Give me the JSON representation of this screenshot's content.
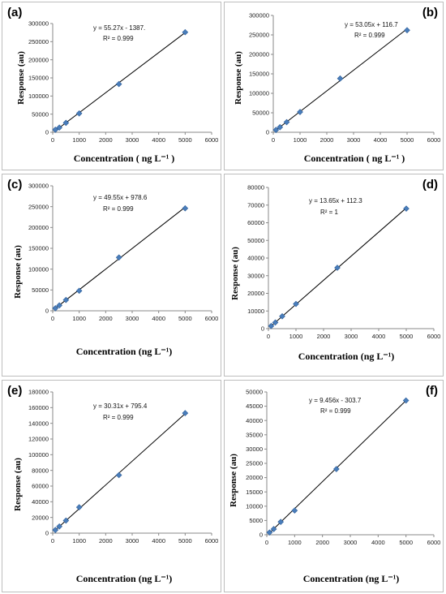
{
  "chart_data": [
    {
      "type": "scatter",
      "panel_label": "(a)",
      "equation": "y = 55.27x - 1387.",
      "r2_label": "R² = 0.999",
      "xlabel": "Concentration ( ng L⁻¹ )",
      "ylabel": "Response (au)",
      "xlim": [
        0,
        6000
      ],
      "ylim": [
        0,
        300000
      ],
      "xticks": [
        0,
        1000,
        2000,
        3000,
        4000,
        5000,
        6000
      ],
      "yticks": [
        0,
        50000,
        100000,
        150000,
        200000,
        250000,
        300000
      ],
      "x": [
        100,
        250,
        500,
        1000,
        2500,
        5000
      ],
      "y": [
        7000,
        13000,
        26000,
        52000,
        133000,
        276000
      ],
      "fit": {
        "slope": 55.27,
        "intercept": -1387
      },
      "marker_color": "#4a7ebb"
    },
    {
      "type": "scatter",
      "panel_label": "(b)",
      "equation": "y = 53.05x + 116.7",
      "r2_label": "R² = 0.999",
      "xlabel": "Concentration ( ng L⁻¹ )",
      "ylabel": "Response (au)",
      "xlim": [
        0,
        6000
      ],
      "ylim": [
        0,
        300000
      ],
      "xticks": [
        0,
        1000,
        2000,
        3000,
        4000,
        5000,
        6000
      ],
      "yticks": [
        0,
        50000,
        100000,
        150000,
        200000,
        250000,
        300000
      ],
      "x": [
        100,
        250,
        500,
        1000,
        2500,
        5000
      ],
      "y": [
        6000,
        13000,
        26000,
        52000,
        138000,
        262000
      ],
      "fit": {
        "slope": 53.05,
        "intercept": 116.7
      },
      "marker_color": "#4a7ebb"
    },
    {
      "type": "scatter",
      "panel_label": "(c)",
      "equation": "y = 49.55x + 978.6",
      "r2_label": "R² = 0.999",
      "xlabel": "Concentration (ng L⁻¹)",
      "ylabel": "Response (au)",
      "xlim": [
        0,
        6000
      ],
      "ylim": [
        0,
        300000
      ],
      "xticks": [
        0,
        1000,
        2000,
        3000,
        4000,
        5000,
        6000
      ],
      "yticks": [
        0,
        50000,
        100000,
        150000,
        200000,
        250000,
        300000
      ],
      "x": [
        100,
        250,
        500,
        1000,
        2500,
        5000
      ],
      "y": [
        6000,
        13000,
        26000,
        48000,
        128000,
        246000
      ],
      "fit": {
        "slope": 49.55,
        "intercept": 978.6
      },
      "marker_color": "#4a7ebb"
    },
    {
      "type": "scatter",
      "panel_label": "(d)",
      "equation": "y = 13.65x + 112.3",
      "r2_label": "R² = 1",
      "xlabel": "Concentration (ng L⁻¹)",
      "ylabel": "Response (au)",
      "xlim": [
        0,
        6000
      ],
      "ylim": [
        0,
        80000
      ],
      "xticks": [
        0,
        1000,
        2000,
        3000,
        4000,
        5000,
        6000
      ],
      "yticks": [
        0,
        10000,
        20000,
        30000,
        40000,
        50000,
        60000,
        70000,
        80000
      ],
      "x": [
        100,
        250,
        500,
        1000,
        2500,
        5000
      ],
      "y": [
        1500,
        3500,
        7000,
        14000,
        34500,
        68000
      ],
      "fit": {
        "slope": 13.65,
        "intercept": 112.3
      },
      "marker_color": "#4a7ebb"
    },
    {
      "type": "scatter",
      "panel_label": "(e)",
      "equation": "y = 30.31x + 795.4",
      "r2_label": "R² = 0.999",
      "xlabel": "Concentration (ng L⁻¹)",
      "ylabel": "Response (au)",
      "xlim": [
        0,
        6000
      ],
      "ylim": [
        0,
        180000
      ],
      "xticks": [
        0,
        1000,
        2000,
        3000,
        4000,
        5000,
        6000
      ],
      "yticks": [
        0,
        20000,
        40000,
        60000,
        80000,
        100000,
        120000,
        140000,
        160000,
        180000
      ],
      "x": [
        100,
        250,
        500,
        1000,
        2500,
        5000
      ],
      "y": [
        4000,
        8500,
        16000,
        33000,
        74000,
        153000
      ],
      "fit": {
        "slope": 30.31,
        "intercept": 795.4
      },
      "marker_color": "#4a7ebb"
    },
    {
      "type": "scatter",
      "panel_label": "(f)",
      "equation": "y = 9.456x - 303.7",
      "r2_label": "R² = 0.999",
      "xlabel": "Concentration (ng L⁻¹)",
      "ylabel": "Response (au)",
      "xlim": [
        0,
        6000
      ],
      "ylim": [
        0,
        50000
      ],
      "xticks": [
        0,
        1000,
        2000,
        3000,
        4000,
        5000,
        6000
      ],
      "yticks": [
        0,
        5000,
        10000,
        15000,
        20000,
        25000,
        30000,
        35000,
        40000,
        45000,
        50000
      ],
      "x": [
        100,
        250,
        500,
        1000,
        2500,
        5000
      ],
      "y": [
        800,
        2000,
        4500,
        8500,
        23000,
        47000
      ],
      "fit": {
        "slope": 9.456,
        "intercept": -303.7
      },
      "marker_color": "#4a7ebb"
    }
  ]
}
